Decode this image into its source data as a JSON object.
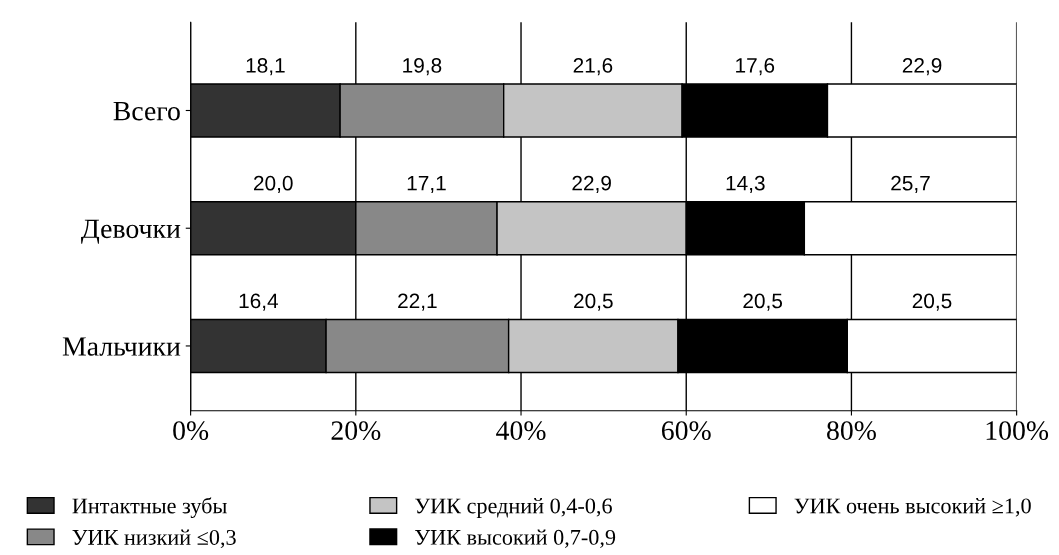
{
  "chart_data": {
    "type": "bar",
    "orientation": "horizontal",
    "stacked": true,
    "categories": [
      "Всего",
      "Девочки",
      "Мальчики"
    ],
    "series": [
      {
        "name": "Интактные зубы",
        "color": "#333333",
        "values": [
          18.1,
          20.0,
          16.4
        ],
        "value_labels": [
          "18,1",
          "20,0",
          "16,4"
        ]
      },
      {
        "name": "УИК низкий ≤0,3",
        "color": "#888888",
        "values": [
          19.8,
          17.1,
          22.1
        ],
        "value_labels": [
          "19,8",
          "17,1",
          "22,1"
        ]
      },
      {
        "name": "УИК средний 0,4-0,6",
        "color": "#c4c4c4",
        "values": [
          21.6,
          22.9,
          20.5
        ],
        "value_labels": [
          "21,6",
          "22,9",
          "20,5"
        ]
      },
      {
        "name": "УИК высокий 0,7-0,9",
        "color": "#000000",
        "values": [
          17.6,
          14.3,
          20.5
        ],
        "value_labels": [
          "17,6",
          "14,3",
          "20,5"
        ]
      },
      {
        "name": "УИК очень высокий ≥1,0",
        "color": "#ffffff",
        "values": [
          22.9,
          25.7,
          20.5
        ],
        "value_labels": [
          "22,9",
          "25,7",
          "20,5"
        ]
      }
    ],
    "xlim": [
      0,
      100
    ],
    "xticks": [
      {
        "value": 0,
        "label": "0%"
      },
      {
        "value": 20,
        "label": "20%"
      },
      {
        "value": 40,
        "label": "40%"
      },
      {
        "value": 60,
        "label": "60%"
      },
      {
        "value": 80,
        "label": "80%"
      },
      {
        "value": 100,
        "label": "100%"
      }
    ],
    "grid": "x",
    "legend": "bottom"
  }
}
